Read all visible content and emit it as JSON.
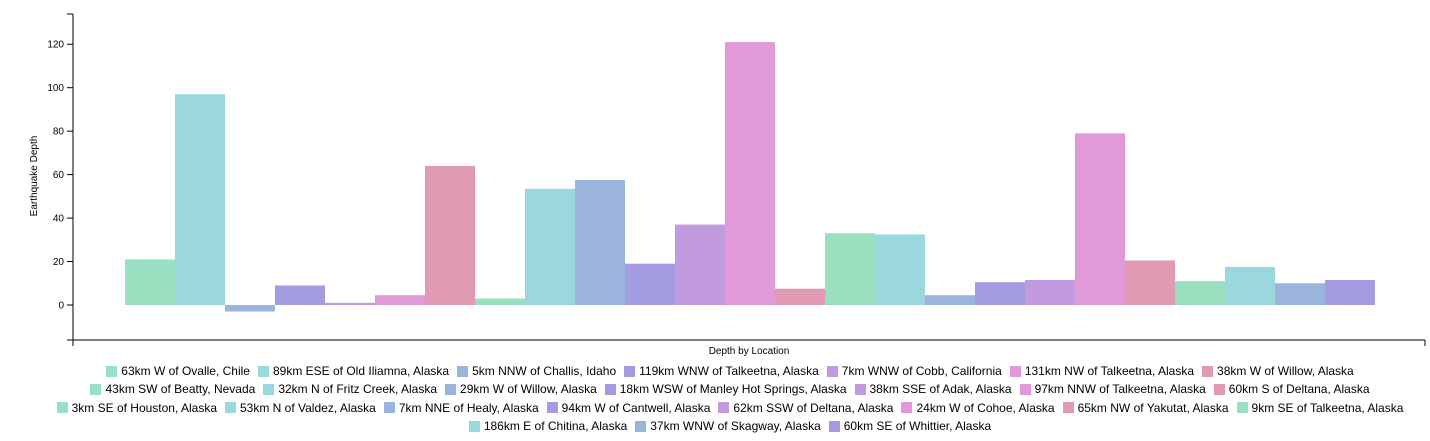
{
  "chart_data": {
    "type": "bar",
    "xlabel": "Depth by Location",
    "ylabel": "Earthquake Depth",
    "ylim": [
      -15,
      135
    ],
    "yticks": [
      0,
      20,
      40,
      60,
      80,
      100,
      120
    ],
    "grid": false,
    "legend_position": "bottom",
    "palette": [
      "#98e0c0",
      "#9ad8de",
      "#9ab4de",
      "#a49ce0",
      "#c29ae0",
      "#e09ad8",
      "#e09ab4"
    ],
    "categories": [
      "63km W of Ovalle, Chile",
      "89km ESE of Old Iliamna, Alaska",
      "5km NNW of Challis, Idaho",
      "119km WNW of Talkeetna, Alaska",
      "7km WNW of Cobb, California",
      "131km NW of Talkeetna, Alaska",
      "38km W of Willow, Alaska",
      "43km SW of Beatty, Nevada",
      "32km N of Fritz Creek, Alaska",
      "29km W of Willow, Alaska",
      "18km WSW of Manley Hot Springs, Alaska",
      "38km SSE of Adak, Alaska",
      "97km NNW of Talkeetna, Alaska",
      "60km S of Deltana, Alaska",
      "3km SE of Houston, Alaska",
      "53km N of Valdez, Alaska",
      "7km NNE of Healy, Alaska",
      "94km W of Cantwell, Alaska",
      "62km SSW of Deltana, Alaska",
      "24km W of Cohoe, Alaska",
      "65km NW of Yakutat, Alaska",
      "9km SE of Talkeetna, Alaska",
      "186km E of Chitina, Alaska",
      "37km WNW of Skagway, Alaska",
      "60km SE of Whittier, Alaska"
    ],
    "values": [
      21,
      97,
      -3,
      9,
      1,
      4.5,
      64,
      3,
      53.5,
      57.5,
      19,
      37,
      121,
      7.5,
      33,
      32.5,
      4.5,
      10.5,
      11.5,
      79,
      20.5,
      11,
      17.5,
      10,
      11.5
    ]
  }
}
